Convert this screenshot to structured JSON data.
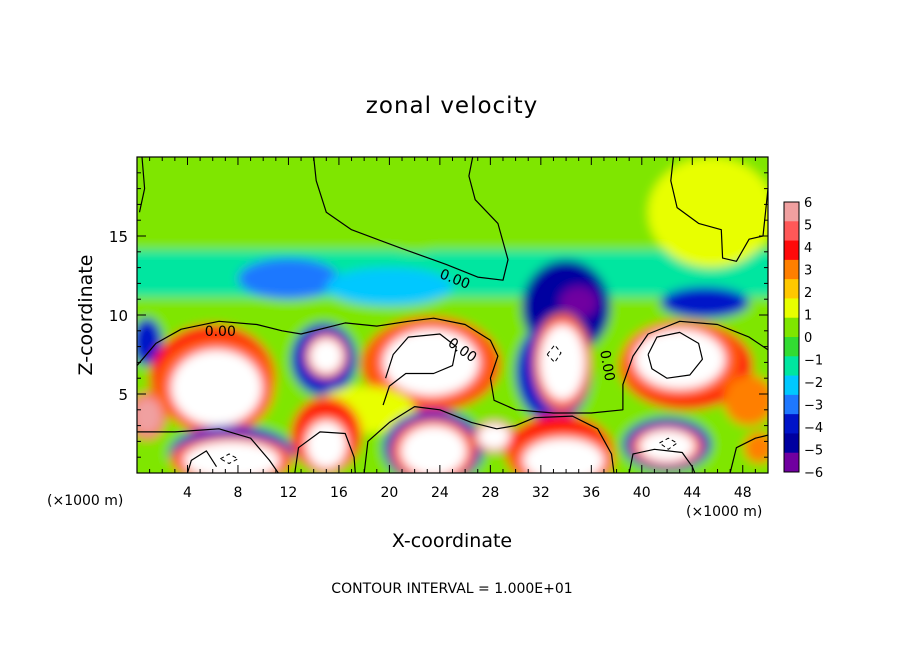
{
  "chart_data": {
    "type": "heatmap",
    "title": "zonal velocity",
    "xlabel": "X-coordinate",
    "ylabel": "Z-coordinate",
    "x_unit_left": "(×1000 m)",
    "x_unit_right": "(×1000 m)",
    "footer": "CONTOUR INTERVAL = 1.000E+01",
    "xlim": [
      0,
      50
    ],
    "ylim": [
      0,
      20
    ],
    "x_ticks": [
      4,
      8,
      12,
      16,
      20,
      24,
      28,
      32,
      36,
      40,
      44,
      48
    ],
    "x_tick_labels": [
      "4",
      "8",
      "12",
      "16",
      "20",
      "24",
      "28",
      "32",
      "36",
      "40",
      "44",
      "48"
    ],
    "y_ticks": [
      5,
      10,
      15
    ],
    "y_tick_labels": [
      "5",
      "10",
      "15"
    ],
    "colorbar": {
      "levels": [
        6,
        5,
        4,
        3,
        2,
        1,
        0,
        -1,
        -2,
        -3,
        -4,
        -5,
        -6
      ],
      "labels": [
        "6",
        "5",
        "4",
        "3",
        "2",
        "1",
        "0",
        "−1",
        "−2",
        "−3",
        "−4",
        "−5",
        "−6"
      ],
      "colors": [
        "#f0a0a0",
        "#ff5858",
        "#ff0a0a",
        "#ff7f00",
        "#ffc800",
        "#e8ff00",
        "#7fe600",
        "#32dc32",
        "#00e6a0",
        "#00c8ff",
        "#1e78ff",
        "#0014c8",
        "#0000a0",
        "#7000a0"
      ]
    },
    "contour_labels": [
      {
        "text": "0.00",
        "x": 25.2,
        "y": 12.3
      },
      {
        "text": "0.00",
        "x": 6.6,
        "y": 9.0
      },
      {
        "text": "0.00",
        "x": 25.8,
        "y": 7.8
      },
      {
        "text": "0.00",
        "x": 37.3,
        "y": 6.8
      }
    ],
    "field": {
      "background": {
        "x": [
          0,
          50
        ],
        "y": [
          13,
          20
        ],
        "value": 0.6
      },
      "bands": [
        {
          "x": [
            0,
            50
          ],
          "y": [
            10.5,
            13.5
          ],
          "value": -1.8
        },
        {
          "x": [
            0,
            50
          ],
          "y": [
            0,
            10.5
          ],
          "value": 0.3
        }
      ],
      "blobs": [
        {
          "cx": 45.5,
          "cy": 16.5,
          "rx": 5,
          "ry": 3.5,
          "value": 1.5
        },
        {
          "cx": 22,
          "cy": 16.5,
          "rx": 5,
          "ry": 2.5,
          "value": 0.9
        },
        {
          "cx": 12,
          "cy": 12.3,
          "rx": 4,
          "ry": 1.3,
          "value": -3.2
        },
        {
          "cx": 20,
          "cy": 11.8,
          "rx": 5,
          "ry": 1.2,
          "value": -2.8
        },
        {
          "cx": 34,
          "cy": 10.5,
          "rx": 3.5,
          "ry": 3,
          "value": -5.2
        },
        {
          "cx": 35,
          "cy": 10.8,
          "rx": 1.5,
          "ry": 1,
          "value": -6.2
        },
        {
          "cx": 45,
          "cy": 10.8,
          "rx": 3.5,
          "ry": 1,
          "value": -4.5
        },
        {
          "cx": 0.8,
          "cy": 8.3,
          "rx": 1.2,
          "ry": 1.5,
          "value": -4.2
        },
        {
          "cx": 6,
          "cy": 6,
          "rx": 5,
          "ry": 3.4,
          "value": 5
        },
        {
          "cx": 6.3,
          "cy": 5.4,
          "rx": 3.6,
          "ry": 2.4,
          "value": 8
        },
        {
          "cx": 14.8,
          "cy": 7.2,
          "rx": 2.6,
          "ry": 2.3,
          "value": -4.8
        },
        {
          "cx": 15,
          "cy": 7.4,
          "rx": 1.3,
          "ry": 1.1,
          "value": 8
        },
        {
          "cx": 23.3,
          "cy": 6.9,
          "rx": 5.5,
          "ry": 3,
          "value": 5
        },
        {
          "cx": 23.3,
          "cy": 7,
          "rx": 3.8,
          "ry": 2.1,
          "value": 8
        },
        {
          "cx": 33,
          "cy": 6.4,
          "rx": 3,
          "ry": 3.2,
          "value": -4.5
        },
        {
          "cx": 33.7,
          "cy": 7,
          "rx": 1.8,
          "ry": 2.4,
          "value": 8
        },
        {
          "cx": 43.5,
          "cy": 6.8,
          "rx": 5.3,
          "ry": 2.8,
          "value": 5
        },
        {
          "cx": 43,
          "cy": 7.2,
          "rx": 3.6,
          "ry": 1.9,
          "value": 8
        },
        {
          "cx": 48.5,
          "cy": 4.6,
          "rx": 2,
          "ry": 1.6,
          "value": 3.5
        },
        {
          "cx": 18,
          "cy": 4,
          "rx": 4,
          "ry": 1.5,
          "value": 1.8
        },
        {
          "cx": 0.8,
          "cy": 3.6,
          "rx": 1.2,
          "ry": 1.2,
          "value": 7
        },
        {
          "cx": 7.5,
          "cy": 1.2,
          "rx": 5,
          "ry": 1.8,
          "value": -4.5
        },
        {
          "cx": 7.5,
          "cy": 0.8,
          "rx": 3.8,
          "ry": 1.2,
          "value": 8
        },
        {
          "cx": 15,
          "cy": 2.4,
          "rx": 2.8,
          "ry": 2.4,
          "value": 4.5
        },
        {
          "cx": 15,
          "cy": 1.8,
          "rx": 1.6,
          "ry": 1.5,
          "value": 8
        },
        {
          "cx": 23.5,
          "cy": 1.6,
          "rx": 4,
          "ry": 2.4,
          "value": -4.8
        },
        {
          "cx": 23.5,
          "cy": 1.4,
          "rx": 2.6,
          "ry": 1.6,
          "value": 8
        },
        {
          "cx": 28.3,
          "cy": 2.3,
          "rx": 1.3,
          "ry": 0.8,
          "value": 8
        },
        {
          "cx": 33.5,
          "cy": 1.3,
          "rx": 4.3,
          "ry": 2.4,
          "value": 5
        },
        {
          "cx": 33.8,
          "cy": 0.8,
          "rx": 3.2,
          "ry": 1.4,
          "value": 8
        },
        {
          "cx": 42,
          "cy": 1.8,
          "rx": 3.5,
          "ry": 1.7,
          "value": -4.5
        },
        {
          "cx": 42,
          "cy": 1.7,
          "rx": 2.2,
          "ry": 1,
          "value": 8
        },
        {
          "cx": 49.3,
          "cy": 1.6,
          "rx": 1.2,
          "ry": 1,
          "value": 4
        }
      ],
      "zero_contours": [
        [
          [
            0.4,
            20
          ],
          [
            0.6,
            18
          ],
          [
            0.2,
            16.5
          ]
        ],
        [
          [
            14,
            20
          ],
          [
            14.2,
            18.5
          ],
          [
            15,
            16.5
          ],
          [
            17,
            15.4
          ],
          [
            21,
            14.2
          ],
          [
            24.5,
            13.2
          ],
          [
            27,
            12.4
          ],
          [
            29,
            12.2
          ],
          [
            29.4,
            13.5
          ],
          [
            28.6,
            15.8
          ],
          [
            26.8,
            17.3
          ],
          [
            26.3,
            18.8
          ],
          [
            26.6,
            20
          ]
        ],
        [
          [
            42.5,
            20
          ],
          [
            42.3,
            18.5
          ],
          [
            42.8,
            16.8
          ],
          [
            44.5,
            15.8
          ],
          [
            46.3,
            15.4
          ],
          [
            46.4,
            13.6
          ],
          [
            47.5,
            13.4
          ],
          [
            48.5,
            14.8
          ],
          [
            49.6,
            15
          ],
          [
            49.8,
            16.5
          ],
          [
            50,
            18
          ]
        ],
        [
          [
            0,
            6.8
          ],
          [
            1.5,
            8.2
          ],
          [
            3.5,
            9.1
          ],
          [
            6.5,
            9.6
          ],
          [
            9.5,
            9.4
          ],
          [
            11.5,
            9
          ],
          [
            13,
            8.8
          ],
          [
            16.5,
            9.5
          ],
          [
            19,
            9.3
          ],
          [
            21.5,
            9.6
          ],
          [
            23.5,
            9.8
          ],
          [
            26,
            9.4
          ],
          [
            28,
            8.4
          ],
          [
            28.6,
            7.4
          ],
          [
            28,
            6
          ],
          [
            28.3,
            4.6
          ],
          [
            30,
            4
          ],
          [
            33,
            3.8
          ],
          [
            36,
            3.8
          ],
          [
            38.5,
            4
          ],
          [
            38.5,
            5.6
          ],
          [
            39.3,
            7.4
          ],
          [
            40.5,
            8.8
          ],
          [
            43,
            9.6
          ],
          [
            46,
            9.4
          ],
          [
            48.5,
            8.6
          ],
          [
            50,
            7.8
          ]
        ],
        [
          [
            0,
            2.6
          ],
          [
            3,
            2.6
          ],
          [
            6.5,
            2.8
          ],
          [
            9,
            2.2
          ],
          [
            10.5,
            0.8
          ],
          [
            11.2,
            0
          ]
        ],
        [
          [
            4,
            0
          ],
          [
            4.3,
            0.8
          ],
          [
            5.5,
            1.4
          ],
          [
            6.3,
            0.4
          ]
        ],
        [
          [
            12.5,
            0
          ],
          [
            12.8,
            1.6
          ],
          [
            14.5,
            2.6
          ],
          [
            16.5,
            2.5
          ],
          [
            17.2,
            1
          ],
          [
            17.3,
            0
          ]
        ],
        [
          [
            18,
            0
          ],
          [
            18.3,
            2
          ],
          [
            20,
            3.2
          ],
          [
            22,
            4.2
          ],
          [
            24,
            4
          ],
          [
            26.5,
            3.2
          ],
          [
            28.5,
            2.8
          ],
          [
            30,
            3
          ],
          [
            31.5,
            3.5
          ],
          [
            34.5,
            3.6
          ],
          [
            36.5,
            2.8
          ],
          [
            37.6,
            1.2
          ],
          [
            37.8,
            0
          ]
        ],
        [
          [
            39,
            0
          ],
          [
            39.3,
            1.2
          ],
          [
            41,
            1.5
          ],
          [
            43.2,
            1.3
          ],
          [
            44,
            0.4
          ],
          [
            44.2,
            0
          ]
        ],
        [
          [
            47,
            0
          ],
          [
            47.5,
            1.6
          ],
          [
            49,
            2.2
          ],
          [
            50,
            2.4
          ]
        ],
        [
          [
            19.5,
            4.3
          ],
          [
            20,
            5.5
          ],
          [
            21.3,
            6.3
          ],
          [
            23.5,
            6.3
          ],
          [
            25,
            6.8
          ],
          [
            25.3,
            8
          ],
          [
            24,
            8.8
          ],
          [
            21.5,
            8.6
          ],
          [
            20.3,
            7.5
          ],
          [
            19.7,
            6
          ]
        ],
        [
          [
            40.5,
            7.5
          ],
          [
            41.2,
            8.6
          ],
          [
            43,
            8.9
          ],
          [
            44.5,
            8.2
          ],
          [
            44.8,
            7.2
          ],
          [
            43.8,
            6.2
          ],
          [
            42,
            6
          ],
          [
            40.8,
            6.6
          ],
          [
            40.5,
            7.5
          ]
        ]
      ],
      "dashed_contours": [
        [
          [
            32.5,
            7.5
          ],
          [
            33.1,
            8.1
          ],
          [
            33.6,
            7.6
          ],
          [
            33.1,
            7
          ],
          [
            32.5,
            7.5
          ]
        ],
        [
          [
            41.4,
            1.9
          ],
          [
            42.1,
            2.2
          ],
          [
            42.8,
            1.9
          ],
          [
            42.1,
            1.5
          ],
          [
            41.4,
            1.9
          ]
        ],
        [
          [
            6.6,
            0.9
          ],
          [
            7.3,
            1.2
          ],
          [
            8,
            0.9
          ],
          [
            7.3,
            0.6
          ],
          [
            6.6,
            0.9
          ]
        ]
      ]
    }
  }
}
